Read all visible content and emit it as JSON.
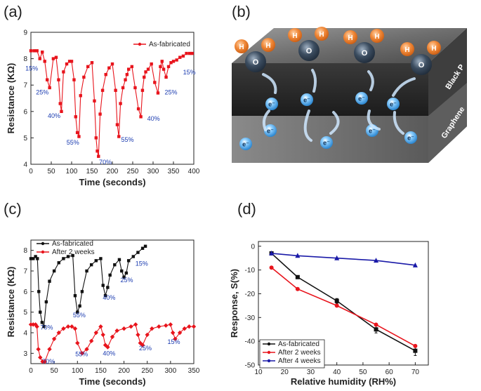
{
  "panels": {
    "a": "(a)",
    "b": "(b)",
    "c": "(c)",
    "d": "(d)"
  },
  "colors": {
    "red": "#e8141c",
    "black": "#111111",
    "blue": "#1a1aa8",
    "annot": "#1a3bb0",
    "water_o": "#2b3a4c",
    "water_h": "#f07c2c",
    "electron": "#4aa8e8"
  },
  "diagram": {
    "layer_top": "Black P",
    "layer_bottom": "Graphene",
    "molecule_o": "O",
    "molecule_h": "H",
    "electron_label": "e⁻"
  },
  "chart_data": [
    {
      "id": "a",
      "type": "line",
      "title": "",
      "xlabel": "Time (seconds)",
      "ylabel": "Resistance (KΩ)",
      "xlim": [
        0,
        400
      ],
      "ylim": [
        4,
        9
      ],
      "xticks": [
        0,
        50,
        100,
        150,
        200,
        250,
        300,
        350,
        400
      ],
      "yticks": [
        4,
        5,
        6,
        7,
        8,
        9
      ],
      "legend": [
        "As-fabricated"
      ],
      "series": [
        {
          "name": "As-fabricated",
          "color": "#e8141c",
          "x": [
            0,
            8,
            15,
            22,
            28,
            34,
            40,
            46,
            55,
            62,
            68,
            72,
            75,
            80,
            88,
            95,
            100,
            106,
            110,
            114,
            118,
            122,
            130,
            140,
            150,
            156,
            160,
            163,
            166,
            170,
            176,
            184,
            192,
            200,
            208,
            212,
            216,
            220,
            226,
            232,
            236,
            240,
            248,
            256,
            264,
            270,
            274,
            278,
            282,
            288,
            296,
            304,
            312,
            318,
            322,
            326,
            332,
            338,
            344,
            350,
            358,
            366,
            374,
            382,
            390,
            396
          ],
          "y": [
            8.3,
            8.3,
            8.3,
            8.0,
            8.25,
            7.9,
            7.2,
            6.9,
            8.0,
            8.05,
            7.2,
            6.3,
            6.0,
            7.5,
            7.8,
            7.9,
            7.9,
            7.2,
            5.8,
            5.2,
            5.05,
            6.6,
            7.3,
            7.7,
            7.85,
            6.4,
            5.0,
            4.5,
            4.3,
            5.9,
            6.8,
            7.4,
            7.65,
            7.8,
            6.8,
            5.5,
            5.05,
            6.3,
            6.9,
            7.2,
            7.4,
            7.6,
            7.7,
            6.9,
            6.1,
            5.8,
            6.8,
            7.3,
            7.5,
            7.6,
            7.8,
            7.1,
            6.7,
            7.7,
            7.9,
            7.6,
            7.3,
            7.7,
            7.85,
            7.9,
            7.95,
            8.05,
            8.1,
            8.2,
            8.2,
            8.2
          ]
        }
      ],
      "annotations": [
        {
          "text": "15%",
          "x": 2,
          "y": 7.55
        },
        {
          "text": "25%",
          "x": 28,
          "y": 6.65
        },
        {
          "text": "40%",
          "x": 57,
          "y": 5.75
        },
        {
          "text": "55%",
          "x": 103,
          "y": 4.75
        },
        {
          "text": "70%",
          "x": 183,
          "y": 4.0
        },
        {
          "text": "55%",
          "x": 237,
          "y": 4.85
        },
        {
          "text": "40%",
          "x": 301,
          "y": 5.65
        },
        {
          "text": "25%",
          "x": 344,
          "y": 6.65
        },
        {
          "text": "15%",
          "x": 389,
          "y": 7.4
        }
      ]
    },
    {
      "id": "c",
      "type": "line",
      "title": "",
      "xlabel": "Time (seconds)",
      "ylabel": "Resistance (KΩ)",
      "xlim": [
        0,
        350
      ],
      "ylim": [
        2.5,
        8.5
      ],
      "xticks": [
        0,
        50,
        100,
        150,
        200,
        250,
        300,
        350
      ],
      "yticks": [
        3,
        4,
        5,
        6,
        7,
        8
      ],
      "legend": [
        "As-fabricated",
        "After 2 weeks"
      ],
      "series": [
        {
          "name": "As-fabricated",
          "color": "#111111",
          "x": [
            0,
            5,
            10,
            14,
            17,
            20,
            24,
            28,
            33,
            40,
            50,
            60,
            70,
            80,
            90,
            95,
            100,
            105,
            110,
            120,
            130,
            140,
            150,
            155,
            160,
            165,
            170,
            180,
            190,
            195,
            200,
            205,
            210,
            220,
            230,
            240,
            246
          ],
          "y": [
            7.6,
            7.6,
            7.7,
            7.6,
            6.0,
            5.0,
            4.5,
            4.3,
            5.5,
            6.5,
            7.0,
            7.4,
            7.6,
            7.7,
            7.75,
            5.8,
            5.0,
            5.3,
            6.0,
            7.0,
            7.3,
            7.5,
            7.6,
            6.3,
            5.8,
            6.2,
            6.8,
            7.3,
            7.55,
            7.0,
            6.7,
            6.9,
            7.5,
            7.7,
            7.9,
            8.1,
            8.2
          ]
        },
        {
          "name": "After 2 weeks",
          "color": "#e8141c",
          "x": [
            0,
            5,
            10,
            13,
            16,
            20,
            25,
            30,
            40,
            50,
            60,
            70,
            80,
            88,
            95,
            100,
            110,
            120,
            130,
            140,
            150,
            155,
            160,
            165,
            175,
            185,
            200,
            215,
            225,
            230,
            235,
            240,
            250,
            260,
            275,
            290,
            300,
            305,
            310,
            320,
            330,
            340,
            350
          ],
          "y": [
            4.4,
            4.4,
            4.4,
            4.3,
            3.2,
            2.8,
            2.6,
            2.6,
            3.2,
            3.7,
            4.0,
            4.2,
            4.3,
            4.3,
            4.2,
            3.5,
            3.0,
            3.2,
            3.6,
            4.0,
            4.3,
            3.9,
            3.4,
            3.3,
            3.8,
            4.1,
            4.2,
            4.3,
            4.4,
            3.9,
            3.5,
            3.4,
            3.9,
            4.2,
            4.3,
            4.35,
            4.4,
            4.0,
            3.7,
            4.0,
            4.2,
            4.3,
            4.3
          ]
        }
      ],
      "annotations": [
        {
          "text": "70%",
          "x": 34,
          "y": 4.15
        },
        {
          "text": "55%",
          "x": 104,
          "y": 4.75
        },
        {
          "text": "40%",
          "x": 168,
          "y": 5.6
        },
        {
          "text": "25%",
          "x": 206,
          "y": 6.45
        },
        {
          "text": "15%",
          "x": 238,
          "y": 7.25
        },
        {
          "text": "70%",
          "x": 38,
          "y": 2.5
        },
        {
          "text": "55%",
          "x": 109,
          "y": 2.85
        },
        {
          "text": "40%",
          "x": 168,
          "y": 2.9
        },
        {
          "text": "25%",
          "x": 246,
          "y": 3.15
        },
        {
          "text": "15%",
          "x": 307,
          "y": 3.45
        }
      ]
    },
    {
      "id": "d",
      "type": "line",
      "title": "",
      "xlabel": "Relative humidity (RH%)",
      "ylabel": "Response, S(%)",
      "xlim": [
        10,
        75
      ],
      "ylim": [
        -50,
        2
      ],
      "xticks": [
        10,
        20,
        30,
        40,
        50,
        60,
        70
      ],
      "yticks": [
        0,
        -10,
        -20,
        -30,
        -40,
        -50
      ],
      "legend": [
        "As-fabricated",
        "After 2 weeks",
        "After 4 weeks"
      ],
      "series": [
        {
          "name": "As-fabricated",
          "color": "#111111",
          "marker": "square",
          "x": [
            15,
            25,
            40,
            55,
            70
          ],
          "y": [
            -3,
            -13,
            -23,
            -35,
            -44
          ],
          "err": [
            0.5,
            0.6,
            1.0,
            1.5,
            2.0
          ]
        },
        {
          "name": "After 2 weeks",
          "color": "#e8141c",
          "marker": "circle",
          "x": [
            15,
            25,
            40,
            55,
            70
          ],
          "y": [
            -9,
            -18,
            -25,
            -33,
            -42
          ],
          "err": [
            0,
            0,
            0,
            0,
            0
          ]
        },
        {
          "name": "After 4 weeks",
          "color": "#1a1aa8",
          "marker": "triangle",
          "x": [
            15,
            25,
            40,
            55,
            70
          ],
          "y": [
            -3,
            -4,
            -5,
            -6,
            -8
          ],
          "err": [
            0,
            0,
            0,
            0,
            0
          ]
        }
      ]
    }
  ]
}
